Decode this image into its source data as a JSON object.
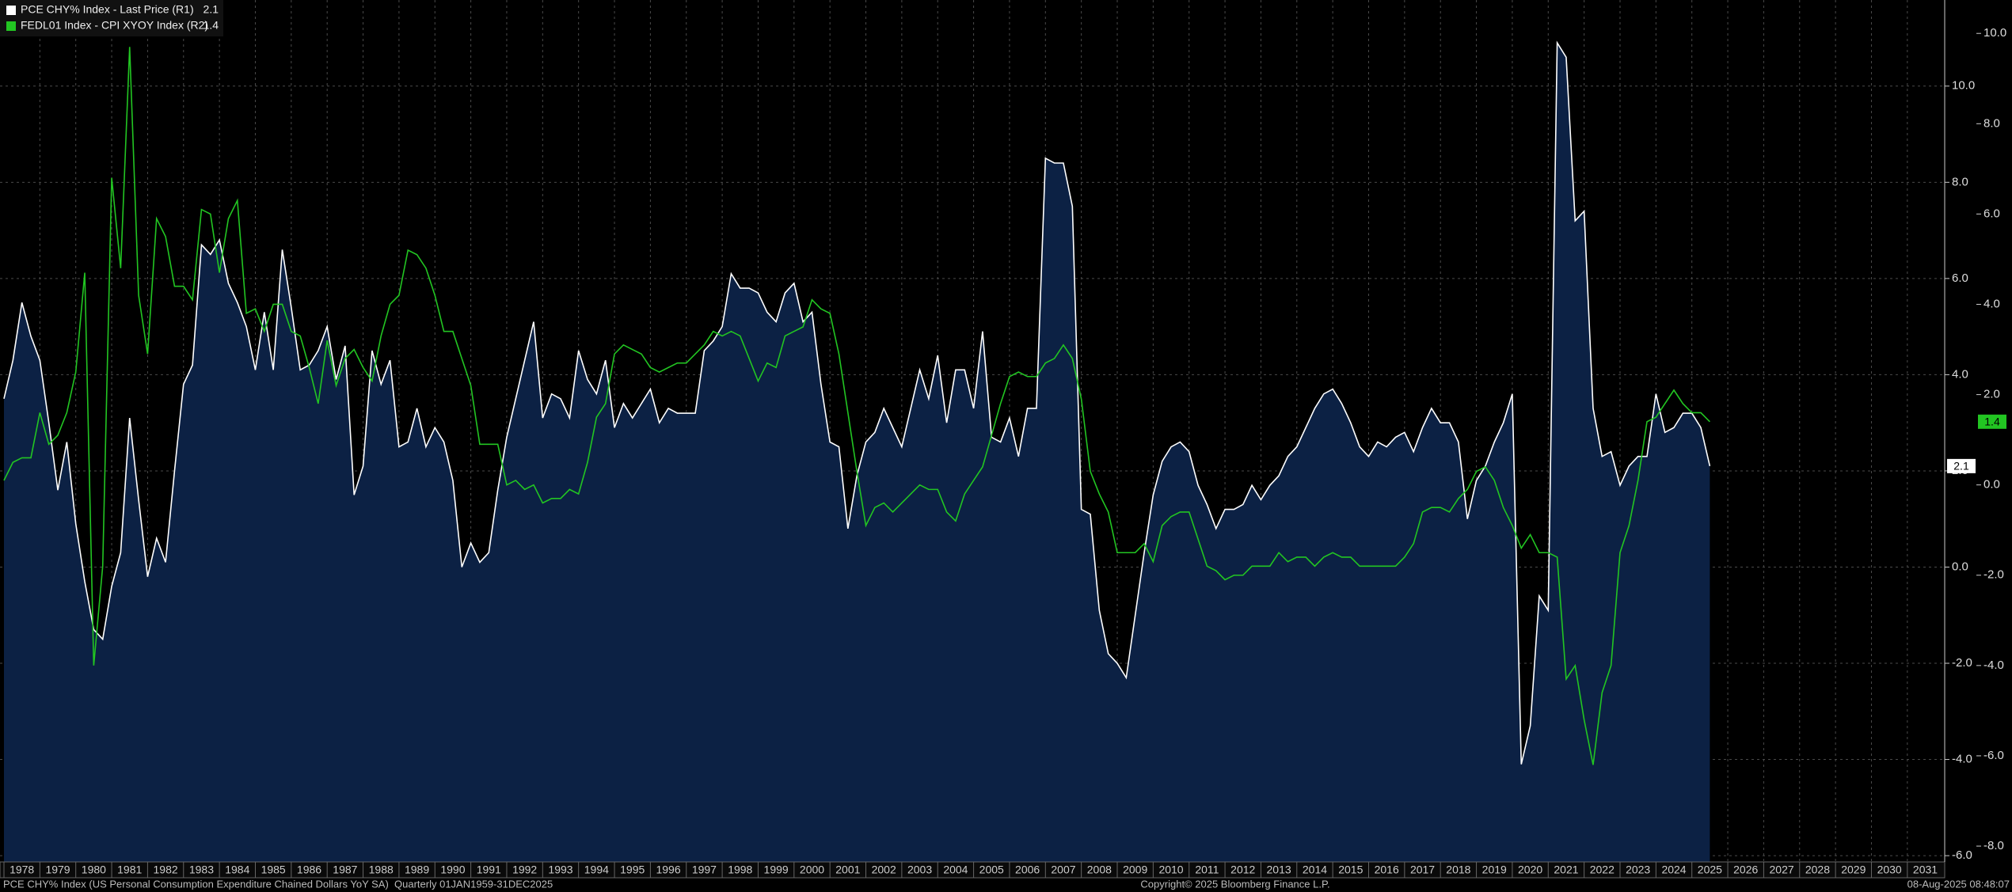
{
  "chart_data": {
    "type": "line",
    "x": [
      1978,
      1978.25,
      1978.5,
      1978.75,
      1979,
      1979.25,
      1979.5,
      1979.75,
      1980,
      1980.25,
      1980.5,
      1980.75,
      1981,
      1981.25,
      1981.5,
      1981.75,
      1982,
      1982.25,
      1982.5,
      1982.75,
      1983,
      1983.25,
      1983.5,
      1983.75,
      1984,
      1984.25,
      1984.5,
      1984.75,
      1985,
      1985.25,
      1985.5,
      1985.75,
      1986,
      1986.25,
      1986.5,
      1986.75,
      1987,
      1987.25,
      1987.5,
      1987.75,
      1988,
      1988.25,
      1988.5,
      1988.75,
      1989,
      1989.25,
      1989.5,
      1989.75,
      1990,
      1990.25,
      1990.5,
      1990.75,
      1991,
      1991.25,
      1991.5,
      1991.75,
      1992,
      1992.25,
      1992.5,
      1992.75,
      1993,
      1993.25,
      1993.5,
      1993.75,
      1994,
      1994.25,
      1994.5,
      1994.75,
      1995,
      1995.25,
      1995.5,
      1995.75,
      1996,
      1996.25,
      1996.5,
      1996.75,
      1997,
      1997.25,
      1997.5,
      1997.75,
      1998,
      1998.25,
      1998.5,
      1998.75,
      1999,
      1999.25,
      1999.5,
      1999.75,
      2000,
      2000.25,
      2000.5,
      2000.75,
      2001,
      2001.25,
      2001.5,
      2001.75,
      2002,
      2002.25,
      2002.5,
      2002.75,
      2003,
      2003.25,
      2003.5,
      2003.75,
      2004,
      2004.25,
      2004.5,
      2004.75,
      2005,
      2005.25,
      2005.5,
      2005.75,
      2006,
      2006.25,
      2006.5,
      2006.75,
      2007,
      2007.25,
      2007.5,
      2007.75,
      2008,
      2008.25,
      2008.5,
      2008.75,
      2009,
      2009.25,
      2009.5,
      2009.75,
      2010,
      2010.25,
      2010.5,
      2010.75,
      2011,
      2011.25,
      2011.5,
      2011.75,
      2012,
      2012.25,
      2012.5,
      2012.75,
      2013,
      2013.25,
      2013.5,
      2013.75,
      2014,
      2014.25,
      2014.5,
      2014.75,
      2015,
      2015.25,
      2015.5,
      2015.75,
      2016,
      2016.25,
      2016.5,
      2016.75,
      2017,
      2017.25,
      2017.5,
      2017.75,
      2018,
      2018.25,
      2018.5,
      2018.75,
      2019,
      2019.25,
      2019.5,
      2019.75,
      2020,
      2020.25,
      2020.5,
      2020.75,
      2021,
      2021.25,
      2021.5,
      2021.75,
      2022,
      2022.25,
      2022.5,
      2022.75,
      2023,
      2023.25,
      2023.5,
      2023.75,
      2024,
      2024.25,
      2024.5,
      2024.75,
      2025,
      2025.25,
      2025.5
    ],
    "series": [
      {
        "name": "PCE CHY% Index - Last Price (R1)",
        "color": "#ffffff",
        "fill": "#0c2144",
        "axis": "y",
        "values": [
          3.5,
          4.3,
          5.5,
          4.8,
          4.3,
          3.0,
          1.6,
          2.6,
          0.9,
          -0.3,
          -1.3,
          -1.5,
          -0.4,
          0.3,
          3.1,
          1.4,
          -0.2,
          0.6,
          0.1,
          2.0,
          3.8,
          4.2,
          6.7,
          6.5,
          6.8,
          5.9,
          5.5,
          5.0,
          4.1,
          5.3,
          4.1,
          6.6,
          5.4,
          4.1,
          4.2,
          4.5,
          5.0,
          3.9,
          4.6,
          1.5,
          2.1,
          4.5,
          3.8,
          4.3,
          2.5,
          2.6,
          3.3,
          2.5,
          2.9,
          2.6,
          1.8,
          0.0,
          0.5,
          0.1,
          0.3,
          1.6,
          2.7,
          3.5,
          4.3,
          5.1,
          3.1,
          3.6,
          3.5,
          3.1,
          4.5,
          3.9,
          3.6,
          4.3,
          2.9,
          3.4,
          3.1,
          3.4,
          3.7,
          3.0,
          3.3,
          3.2,
          3.2,
          3.2,
          4.5,
          4.7,
          5.0,
          6.1,
          5.8,
          5.8,
          5.7,
          5.3,
          5.1,
          5.7,
          5.9,
          5.1,
          5.3,
          3.8,
          2.6,
          2.5,
          0.8,
          1.9,
          2.6,
          2.8,
          3.3,
          2.9,
          2.5,
          3.3,
          4.1,
          3.5,
          4.4,
          3.0,
          4.1,
          4.1,
          3.3,
          4.9,
          2.7,
          2.6,
          3.1,
          2.3,
          3.3,
          3.3,
          8.5,
          8.4,
          8.4,
          7.5,
          1.2,
          1.1,
          -0.9,
          -1.8,
          -2.0,
          -2.3,
          -1.0,
          0.3,
          1.5,
          2.2,
          2.5,
          2.6,
          2.4,
          1.7,
          1.3,
          0.8,
          1.2,
          1.2,
          1.3,
          1.7,
          1.4,
          1.7,
          1.9,
          2.3,
          2.5,
          2.9,
          3.3,
          3.6,
          3.7,
          3.4,
          3.0,
          2.5,
          2.3,
          2.6,
          2.5,
          2.7,
          2.8,
          2.4,
          2.9,
          3.3,
          3.0,
          3.0,
          2.6,
          1.0,
          1.8,
          2.1,
          2.6,
          3.0,
          3.6,
          -4.1,
          -3.3,
          -0.6,
          -0.9,
          10.9,
          10.6,
          7.2,
          7.4,
          3.3,
          2.3,
          2.4,
          1.7,
          2.1,
          2.3,
          2.3,
          3.6,
          2.8,
          2.9,
          3.2,
          3.2,
          2.9,
          2.1
        ]
      },
      {
        "name": "FEDL01 Index - CPI XYOY Index (R2)",
        "color": "#22c522",
        "axis": "y2",
        "values": [
          0.1,
          0.5,
          0.6,
          0.6,
          1.6,
          0.9,
          1.1,
          1.6,
          2.5,
          4.7,
          -4.0,
          -1.8,
          6.8,
          4.8,
          9.7,
          4.2,
          2.9,
          5.9,
          5.5,
          4.4,
          4.4,
          4.1,
          6.1,
          6.0,
          4.7,
          5.9,
          6.3,
          3.8,
          3.9,
          3.4,
          4.0,
          4.0,
          3.4,
          3.3,
          2.6,
          1.8,
          3.2,
          2.2,
          2.8,
          3.0,
          2.6,
          2.3,
          3.3,
          4.0,
          4.2,
          5.2,
          5.1,
          4.8,
          4.2,
          3.4,
          3.4,
          2.8,
          2.2,
          0.9,
          0.9,
          0.9,
          0.0,
          0.1,
          -0.1,
          0.0,
          -0.4,
          -0.3,
          -0.3,
          -0.1,
          -0.2,
          0.5,
          1.5,
          1.8,
          2.9,
          3.1,
          3.0,
          2.9,
          2.6,
          2.5,
          2.6,
          2.7,
          2.7,
          2.9,
          3.1,
          3.4,
          3.3,
          3.4,
          3.3,
          2.8,
          2.3,
          2.7,
          2.6,
          3.3,
          3.4,
          3.5,
          4.1,
          3.9,
          3.8,
          2.9,
          1.6,
          0.3,
          -0.9,
          -0.5,
          -0.4,
          -0.6,
          -0.4,
          -0.2,
          0.0,
          -0.1,
          -0.1,
          -0.6,
          -0.8,
          -0.2,
          0.1,
          0.4,
          1.1,
          1.8,
          2.4,
          2.5,
          2.4,
          2.4,
          2.7,
          2.8,
          3.1,
          2.8,
          1.9,
          0.3,
          -0.2,
          -0.6,
          -1.5,
          -1.5,
          -1.5,
          -1.3,
          -1.7,
          -0.9,
          -0.7,
          -0.6,
          -0.6,
          -1.2,
          -1.8,
          -1.9,
          -2.1,
          -2.0,
          -2.0,
          -1.8,
          -1.8,
          -1.8,
          -1.5,
          -1.7,
          -1.6,
          -1.6,
          -1.8,
          -1.6,
          -1.5,
          -1.6,
          -1.6,
          -1.8,
          -1.8,
          -1.8,
          -1.8,
          -1.8,
          -1.6,
          -1.3,
          -0.6,
          -0.5,
          -0.5,
          -0.6,
          -0.3,
          -0.1,
          0.3,
          0.4,
          0.1,
          -0.5,
          -0.9,
          -1.4,
          -1.1,
          -1.5,
          -1.5,
          -1.6,
          -4.3,
          -4.0,
          -5.2,
          -6.2,
          -4.6,
          -4.0,
          -1.5,
          -0.9,
          0.1,
          1.4,
          1.5,
          1.8,
          2.1,
          1.8,
          1.6,
          1.6,
          1.4
        ]
      }
    ],
    "xlim": [
      1977.89,
      2032.04
    ],
    "xticks": [
      1978,
      1979,
      1980,
      1981,
      1982,
      1983,
      1984,
      1985,
      1986,
      1987,
      1988,
      1989,
      1990,
      1991,
      1992,
      1993,
      1994,
      1995,
      1996,
      1997,
      1998,
      1999,
      2000,
      2001,
      2002,
      2003,
      2004,
      2005,
      2006,
      2007,
      2008,
      2009,
      2010,
      2011,
      2012,
      2013,
      2014,
      2015,
      2016,
      2017,
      2018,
      2019,
      2020,
      2021,
      2022,
      2023,
      2024,
      2025,
      2026,
      2027,
      2028,
      2029,
      2030,
      2031
    ],
    "ylim": [
      -6.13,
      11.79
    ],
    "yticks": [
      {
        "value": 10,
        "label": "10.0"
      },
      {
        "value": 8,
        "label": "8.0"
      },
      {
        "value": 6,
        "label": "6.0"
      },
      {
        "value": 4,
        "label": "4.0"
      },
      {
        "value": 2,
        "label": "2.0"
      },
      {
        "value": 0,
        "label": "0.0"
      },
      {
        "value": -2,
        "label": "-2.0"
      },
      {
        "value": -4,
        "label": "-4.0"
      },
      {
        "value": -6,
        "label": "-6.0"
      }
    ],
    "y2lim": [
      -8.35,
      10.74
    ],
    "y2ticks": [
      {
        "value": 10,
        "label": "10.0"
      },
      {
        "value": 8,
        "label": "8.0"
      },
      {
        "value": 6,
        "label": "6.0"
      },
      {
        "value": 4,
        "label": "4.0"
      },
      {
        "value": 2,
        "label": "2.0"
      },
      {
        "value": 0,
        "label": "0.0"
      },
      {
        "value": -2,
        "label": "-2.0"
      },
      {
        "value": -4,
        "label": "-4.0"
      },
      {
        "value": -6,
        "label": "-6.0"
      },
      {
        "value": -8,
        "label": "-8.0"
      }
    ],
    "grid": true,
    "legend": "top-left",
    "footer": {
      "description": "PCE CHY% Index (US Personal Consumption Expenditure Chained Dollars YoY SA)  Quarterly 01JAN1959-31DEC2025",
      "copyright": "Copyright© 2025 Bloomberg Finance L.P.",
      "timestamp": "08-Aug-2025 08:48:07"
    }
  }
}
